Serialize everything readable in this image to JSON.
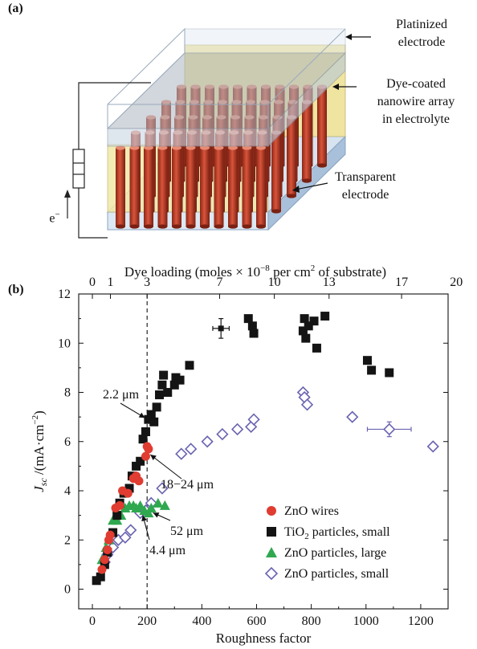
{
  "panel_a": {
    "label": "(a)",
    "callouts": {
      "platinized": [
        "Platinized",
        "electrode"
      ],
      "nanowire": [
        "Dye-coated",
        "nanowire array",
        "in electrolyte"
      ],
      "transparent": [
        "Transparent",
        "electrode"
      ],
      "electron": "e"
    }
  },
  "panel_b": {
    "label": "(b)"
  },
  "colors": {
    "zno_wires": "#e03c31",
    "tio2": "#141414",
    "zno_large": "#2fa84f",
    "zno_small": "#6a64b0",
    "nanowire": "#b83a25",
    "electrolyte": "#f2e8a8",
    "glass": "#c8d8ea"
  },
  "chart_data": {
    "type": "scatter",
    "xlabel": "Roughness factor",
    "ylabel": "J_sc /(mA·cm^-2)",
    "x2label": "Dye loading (moles × 10^-8 per cm^2 of substrate)",
    "xlim": [
      -50,
      1300
    ],
    "ylim": [
      -0.8,
      12
    ],
    "x_ticks": [
      "0",
      "200",
      "400",
      "600",
      "800",
      "1000",
      "1200"
    ],
    "y_ticks": [
      "0",
      "2",
      "4",
      "6",
      "8",
      "10",
      "12"
    ],
    "x2_ticks": [
      {
        "label": "0",
        "x": 0
      },
      {
        "label": "1",
        "x": 66
      },
      {
        "label": "3",
        "x": 200
      },
      {
        "label": "7",
        "x": 465
      },
      {
        "label": "10",
        "x": 665
      },
      {
        "label": "13",
        "x": 865
      },
      {
        "label": "17",
        "x": 1130
      },
      {
        "label": "20",
        "x": 1330
      }
    ],
    "reference_line_x": 200,
    "legend_position": "bottom-right",
    "annotations": [
      {
        "text": "2.2 μm",
        "x": 198,
        "y": 6.9
      },
      {
        "text": "18−24 μm",
        "x": 200,
        "y": 5.6
      },
      {
        "text": "52 μm",
        "x": 210,
        "y": 3.3
      },
      {
        "text": "4.4 μm",
        "x": 190,
        "y": 3.2
      }
    ],
    "series": [
      {
        "name": "ZnO wires",
        "marker": "circle",
        "points": [
          [
            35,
            0.8
          ],
          [
            45,
            1.2
          ],
          [
            55,
            1.6
          ],
          [
            60,
            2.0
          ],
          [
            65,
            2.2
          ],
          [
            85,
            3.3
          ],
          [
            100,
            3.4
          ],
          [
            110,
            4.0
          ],
          [
            130,
            3.9
          ],
          [
            150,
            4.5
          ],
          [
            160,
            4.6
          ],
          [
            170,
            4.4
          ],
          [
            195,
            5.4
          ],
          [
            200,
            5.8
          ],
          [
            205,
            5.7
          ]
        ]
      },
      {
        "name": "TiO2 particles, small",
        "marker": "square",
        "points": [
          [
            15,
            0.35
          ],
          [
            30,
            0.5
          ],
          [
            45,
            1.0
          ],
          [
            55,
            1.5
          ],
          [
            75,
            2.3
          ],
          [
            90,
            3.0
          ],
          [
            100,
            3.5
          ],
          [
            115,
            3.9
          ],
          [
            135,
            4.1
          ],
          [
            145,
            4.6
          ],
          [
            160,
            5.0
          ],
          [
            175,
            5.2
          ],
          [
            185,
            6.1
          ],
          [
            195,
            6.4
          ],
          [
            205,
            6.9
          ],
          [
            215,
            7.1
          ],
          [
            225,
            6.8
          ],
          [
            235,
            7.4
          ],
          [
            245,
            7.9
          ],
          [
            255,
            8.3
          ],
          [
            260,
            8.7
          ],
          [
            275,
            8.0
          ],
          [
            300,
            8.3
          ],
          [
            305,
            8.6
          ],
          [
            320,
            8.5
          ],
          [
            355,
            9.1
          ],
          [
            570,
            11.0
          ],
          [
            585,
            10.7
          ],
          [
            590,
            10.4
          ],
          [
            770,
            10.5
          ],
          [
            775,
            11.0
          ],
          [
            780,
            10.2
          ],
          [
            790,
            10.7
          ],
          [
            810,
            10.9
          ],
          [
            820,
            9.8
          ],
          [
            850,
            11.1
          ],
          [
            1005,
            9.3
          ],
          [
            1020,
            8.9
          ],
          [
            1085,
            8.8
          ]
        ]
      },
      {
        "name": "ZnO particles, large",
        "marker": "triangle",
        "points": [
          [
            35,
            1.2
          ],
          [
            50,
            1.7
          ],
          [
            60,
            2.0
          ],
          [
            75,
            2.8
          ],
          [
            90,
            2.8
          ],
          [
            105,
            3.0
          ],
          [
            120,
            3.3
          ],
          [
            135,
            3.4
          ],
          [
            150,
            3.4
          ],
          [
            160,
            3.3
          ],
          [
            175,
            3.4
          ],
          [
            190,
            3.2
          ],
          [
            205,
            3.1
          ],
          [
            215,
            3.3
          ],
          [
            240,
            3.5
          ],
          [
            265,
            3.4
          ]
        ]
      },
      {
        "name": "ZnO particles, small",
        "marker": "diamond",
        "points": [
          [
            45,
            1.1
          ],
          [
            55,
            1.4
          ],
          [
            75,
            1.7
          ],
          [
            95,
            2.0
          ],
          [
            120,
            2.1
          ],
          [
            140,
            2.4
          ],
          [
            175,
            3.1
          ],
          [
            195,
            3.2
          ],
          [
            215,
            3.5
          ],
          [
            255,
            4.1
          ],
          [
            325,
            5.5
          ],
          [
            360,
            5.7
          ],
          [
            420,
            6.0
          ],
          [
            475,
            6.3
          ],
          [
            530,
            6.5
          ],
          [
            580,
            6.6
          ],
          [
            590,
            6.9
          ],
          [
            770,
            8.0
          ],
          [
            775,
            7.8
          ],
          [
            785,
            7.5
          ],
          [
            950,
            7.0
          ],
          [
            1085,
            6.5
          ],
          [
            1245,
            5.8
          ]
        ]
      }
    ],
    "error_bars": [
      {
        "x": 470,
        "y": 10.6,
        "xerr": 30,
        "yerr": 0.4,
        "series": "TiO2 particles, small"
      },
      {
        "x": 1085,
        "y": 6.5,
        "xerr": 80,
        "yerr": 0.3,
        "series": "ZnO particles, small"
      }
    ]
  }
}
